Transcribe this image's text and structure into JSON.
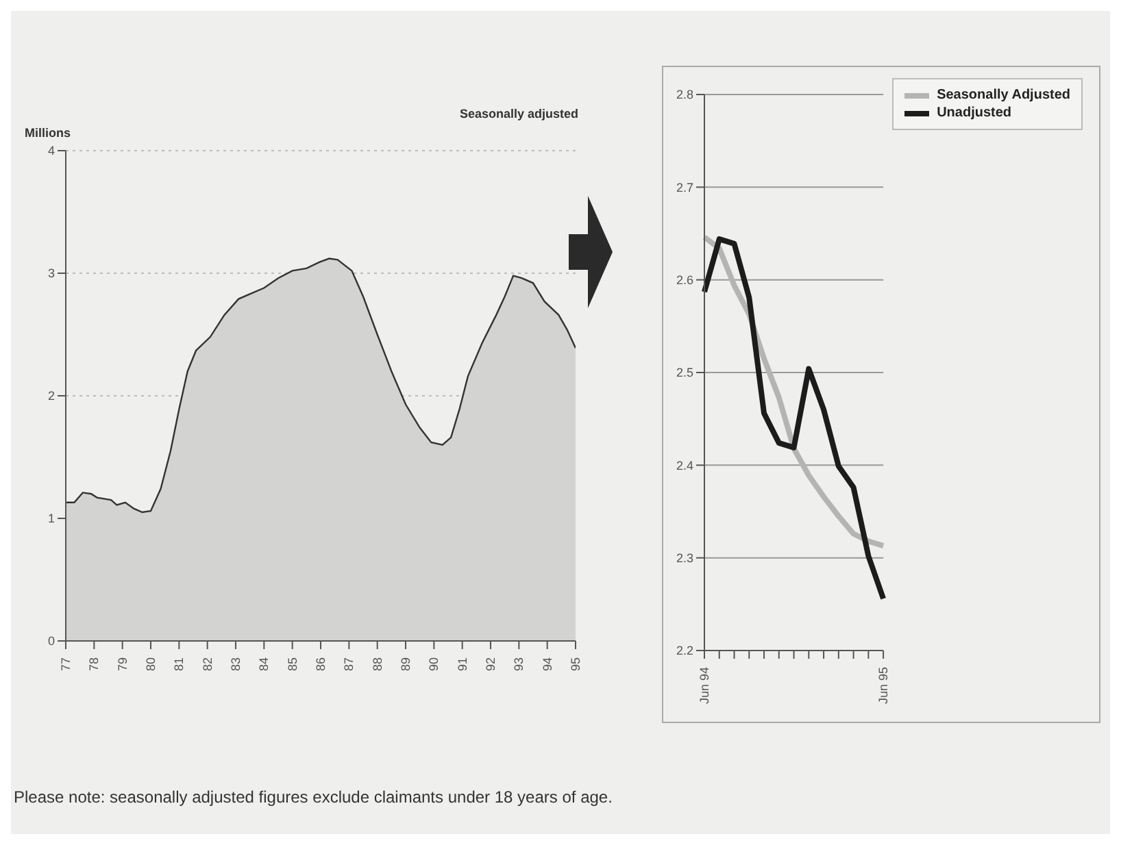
{
  "chart_data": [
    {
      "type": "area",
      "subtitle": "Seasonally adjusted",
      "ylabel": "Millions",
      "grid": "y",
      "ylim": [
        0,
        4
      ],
      "yticks": [
        0,
        1,
        2,
        3,
        4
      ],
      "xlim": [
        77,
        95
      ],
      "xticks": [
        77,
        78,
        79,
        80,
        81,
        82,
        83,
        84,
        85,
        86,
        87,
        88,
        89,
        90,
        91,
        92,
        93,
        94,
        95
      ],
      "x": [
        77.0,
        77.3,
        77.6,
        77.9,
        78.1,
        78.6,
        78.8,
        79.1,
        79.4,
        79.7,
        80.0,
        80.35,
        80.7,
        81.0,
        81.3,
        81.6,
        82.1,
        82.6,
        83.1,
        83.5,
        84.0,
        84.5,
        85.0,
        85.5,
        85.95,
        86.3,
        86.6,
        87.1,
        87.5,
        88.0,
        88.5,
        89.0,
        89.5,
        89.9,
        90.3,
        90.6,
        90.9,
        91.2,
        91.7,
        92.2,
        92.5,
        92.8,
        93.1,
        93.5,
        93.9,
        94.4,
        94.7,
        95.0
      ],
      "series": [
        {
          "color": "#d3d3d1",
          "values": [
            1.13,
            1.13,
            1.21,
            1.2,
            1.17,
            1.15,
            1.11,
            1.13,
            1.08,
            1.05,
            1.06,
            1.24,
            1.55,
            1.89,
            2.2,
            2.37,
            2.48,
            2.66,
            2.79,
            2.83,
            2.88,
            2.96,
            3.02,
            3.04,
            3.09,
            3.12,
            3.11,
            3.02,
            2.81,
            2.5,
            2.2,
            1.93,
            1.74,
            1.62,
            1.6,
            1.66,
            1.89,
            2.16,
            2.43,
            2.66,
            2.81,
            2.98,
            2.96,
            2.92,
            2.77,
            2.66,
            2.54,
            2.39
          ]
        }
      ],
      "annotations": [
        "Please note: seasonally adjusted figures exclude claimants under 18 years of age."
      ]
    },
    {
      "type": "line",
      "grid": "y",
      "legend": "top right",
      "ylim": [
        2.2,
        2.8
      ],
      "yticks": [
        2.2,
        2.3,
        2.4,
        2.5,
        2.6,
        2.7,
        2.8
      ],
      "categories": [
        "Jun 94",
        null,
        null,
        null,
        null,
        null,
        null,
        null,
        null,
        null,
        null,
        null,
        "Jun 95"
      ],
      "series": [
        {
          "name": "Seasonally Adjusted",
          "color": "#b4b4b2",
          "values": [
            2.646,
            2.634,
            2.594,
            2.563,
            2.515,
            2.473,
            2.418,
            2.389,
            2.366,
            2.345,
            2.326,
            2.318,
            2.313
          ]
        },
        {
          "name": "Unadjusted",
          "color": "#1c1c1c",
          "values": [
            2.587,
            2.644,
            2.639,
            2.581,
            2.456,
            2.424,
            2.419,
            2.504,
            2.46,
            2.399,
            2.376,
            2.302,
            2.256
          ]
        }
      ]
    }
  ]
}
